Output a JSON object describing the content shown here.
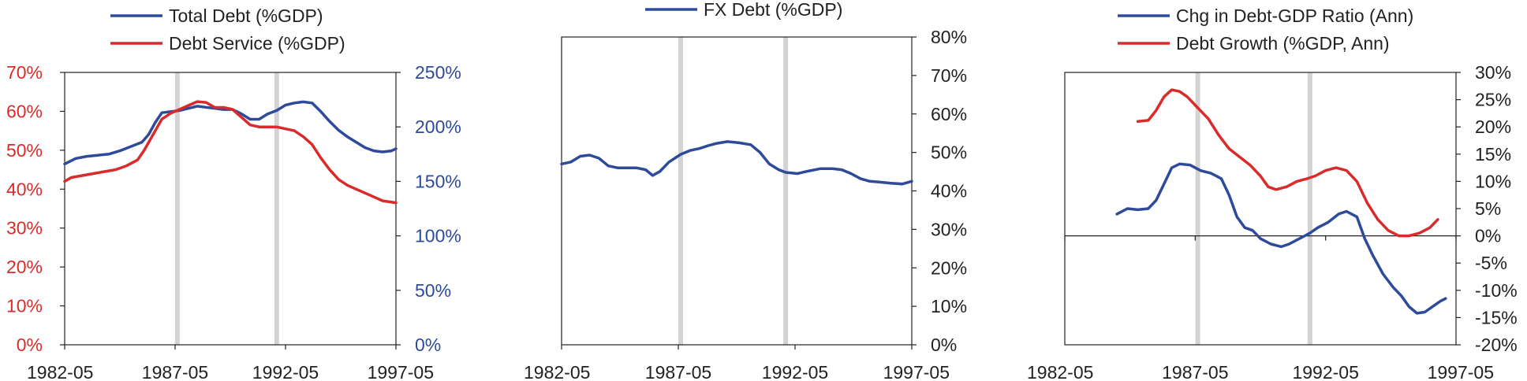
{
  "colors": {
    "blue": "#2e4a9a",
    "red": "#d92b2b",
    "axis": "#222222",
    "band": "#d3d3d3",
    "tick_text": "#222222"
  },
  "chart_data": [
    {
      "id": "c1",
      "type": "line",
      "x_ticks": [
        "1982-05",
        "1987-05",
        "1992-05",
        "1997-05"
      ],
      "x_range": [
        1982.4,
        1997.4
      ],
      "bands": [
        1987.5,
        1992.0
      ],
      "grid": false,
      "legend_position": "top",
      "y_left": {
        "range": [
          0,
          70
        ],
        "ticks": [
          "0%",
          "10%",
          "20%",
          "30%",
          "40%",
          "50%",
          "60%",
          "70%"
        ],
        "color": "red"
      },
      "y_right": {
        "range": [
          0,
          250
        ],
        "ticks": [
          "0%",
          "50%",
          "100%",
          "150%",
          "200%",
          "250%"
        ],
        "color": "blue"
      },
      "series": [
        {
          "name": "Total Debt (%GDP)",
          "color": "blue",
          "axis": "right",
          "points": [
            [
              1982.4,
              166
            ],
            [
              1982.9,
              171
            ],
            [
              1983.4,
              173
            ],
            [
              1983.9,
              174
            ],
            [
              1984.4,
              175
            ],
            [
              1984.9,
              178
            ],
            [
              1985.4,
              182
            ],
            [
              1985.9,
              186
            ],
            [
              1986.2,
              193
            ],
            [
              1986.5,
              204
            ],
            [
              1986.8,
              213
            ],
            [
              1987.2,
              214
            ],
            [
              1987.6,
              215
            ],
            [
              1988.0,
              217
            ],
            [
              1988.4,
              219
            ],
            [
              1988.8,
              218
            ],
            [
              1989.2,
              217
            ],
            [
              1989.6,
              216
            ],
            [
              1990.0,
              216
            ],
            [
              1990.4,
              212
            ],
            [
              1990.8,
              207
            ],
            [
              1991.2,
              207
            ],
            [
              1991.6,
              212
            ],
            [
              1992.0,
              215
            ],
            [
              1992.4,
              220
            ],
            [
              1992.8,
              222
            ],
            [
              1993.2,
              223
            ],
            [
              1993.6,
              222
            ],
            [
              1994.0,
              214
            ],
            [
              1994.4,
              205
            ],
            [
              1994.8,
              197
            ],
            [
              1995.2,
              191
            ],
            [
              1995.6,
              186
            ],
            [
              1996.0,
              181
            ],
            [
              1996.4,
              178
            ],
            [
              1996.8,
              177
            ],
            [
              1997.2,
              178
            ],
            [
              1997.4,
              180
            ]
          ]
        },
        {
          "name": "Debt Service (%GDP)",
          "color": "red",
          "axis": "left",
          "points": [
            [
              1982.4,
              42.0
            ],
            [
              1982.7,
              43.0
            ],
            [
              1983.2,
              43.5
            ],
            [
              1983.7,
              44.0
            ],
            [
              1984.2,
              44.5
            ],
            [
              1984.7,
              45.0
            ],
            [
              1985.2,
              46.0
            ],
            [
              1985.7,
              47.5
            ],
            [
              1986.0,
              50.0
            ],
            [
              1986.4,
              54.0
            ],
            [
              1986.8,
              58.0
            ],
            [
              1987.2,
              59.5
            ],
            [
              1987.6,
              60.5
            ],
            [
              1988.0,
              61.5
            ],
            [
              1988.4,
              62.5
            ],
            [
              1988.8,
              62.3
            ],
            [
              1989.2,
              61.0
            ],
            [
              1989.6,
              61.0
            ],
            [
              1990.0,
              60.5
            ],
            [
              1990.4,
              58.5
            ],
            [
              1990.8,
              56.5
            ],
            [
              1991.2,
              56.0
            ],
            [
              1991.6,
              56.0
            ],
            [
              1992.0,
              56.0
            ],
            [
              1992.4,
              55.5
            ],
            [
              1992.8,
              55.0
            ],
            [
              1993.2,
              53.5
            ],
            [
              1993.6,
              51.5
            ],
            [
              1994.0,
              48.0
            ],
            [
              1994.4,
              45.0
            ],
            [
              1994.8,
              42.5
            ],
            [
              1995.2,
              41.0
            ],
            [
              1995.6,
              40.0
            ],
            [
              1996.0,
              39.0
            ],
            [
              1996.4,
              38.0
            ],
            [
              1996.8,
              37.0
            ],
            [
              1997.4,
              36.5
            ]
          ]
        }
      ]
    },
    {
      "id": "c2",
      "type": "line",
      "x_ticks": [
        "1982-05",
        "1987-05",
        "1992-05",
        "1997-05"
      ],
      "x_range": [
        1982.4,
        1997.4
      ],
      "bands": [
        1987.5,
        1992.0
      ],
      "grid": false,
      "legend_position": "top",
      "y_right": {
        "range": [
          0,
          80
        ],
        "ticks": [
          "0%",
          "10%",
          "20%",
          "30%",
          "40%",
          "50%",
          "60%",
          "70%",
          "80%"
        ],
        "color": "axis"
      },
      "series": [
        {
          "name": "FX Debt (%GDP)",
          "color": "blue",
          "axis": "right",
          "points": [
            [
              1982.4,
              47.0
            ],
            [
              1982.8,
              47.5
            ],
            [
              1983.2,
              49.0
            ],
            [
              1983.6,
              49.3
            ],
            [
              1984.0,
              48.5
            ],
            [
              1984.4,
              46.5
            ],
            [
              1984.8,
              46.0
            ],
            [
              1985.2,
              46.0
            ],
            [
              1985.6,
              46.0
            ],
            [
              1986.0,
              45.5
            ],
            [
              1986.3,
              44.0
            ],
            [
              1986.6,
              45.0
            ],
            [
              1987.0,
              47.5
            ],
            [
              1987.5,
              49.5
            ],
            [
              1987.9,
              50.5
            ],
            [
              1988.3,
              51.0
            ],
            [
              1988.7,
              51.8
            ],
            [
              1989.0,
              52.3
            ],
            [
              1989.5,
              52.8
            ],
            [
              1990.0,
              52.5
            ],
            [
              1990.5,
              52.0
            ],
            [
              1990.9,
              50.0
            ],
            [
              1991.3,
              47.0
            ],
            [
              1991.7,
              45.5
            ],
            [
              1992.0,
              44.8
            ],
            [
              1992.5,
              44.5
            ],
            [
              1993.0,
              45.2
            ],
            [
              1993.5,
              45.8
            ],
            [
              1994.0,
              45.8
            ],
            [
              1994.4,
              45.5
            ],
            [
              1994.8,
              44.5
            ],
            [
              1995.2,
              43.2
            ],
            [
              1995.6,
              42.5
            ],
            [
              1996.0,
              42.3
            ],
            [
              1996.5,
              42.0
            ],
            [
              1997.0,
              41.8
            ],
            [
              1997.4,
              42.5
            ]
          ]
        }
      ]
    },
    {
      "id": "c3",
      "type": "line",
      "x_ticks": [
        "1982-05",
        "1987-05",
        "1992-05",
        "1997-05"
      ],
      "x_range": [
        1982.4,
        1997.4
      ],
      "bands": [
        1987.5,
        1991.8
      ],
      "grid": false,
      "legend_position": "top",
      "zero_line": true,
      "y_right": {
        "range": [
          -20,
          30
        ],
        "ticks": [
          "-20%",
          "-15%",
          "-10%",
          "-5%",
          "0%",
          "5%",
          "10%",
          "15%",
          "20%",
          "25%",
          "30%"
        ],
        "color": "axis"
      },
      "series": [
        {
          "name": "Chg in Debt-GDP Ratio (Ann)",
          "color": "blue",
          "axis": "right",
          "points": [
            [
              1984.4,
              4.0
            ],
            [
              1984.8,
              5.0
            ],
            [
              1985.2,
              4.8
            ],
            [
              1985.6,
              5.0
            ],
            [
              1985.9,
              6.5
            ],
            [
              1986.2,
              9.5
            ],
            [
              1986.5,
              12.5
            ],
            [
              1986.8,
              13.2
            ],
            [
              1987.2,
              13.0
            ],
            [
              1987.6,
              12.0
            ],
            [
              1988.0,
              11.5
            ],
            [
              1988.4,
              10.5
            ],
            [
              1988.7,
              7.5
            ],
            [
              1989.0,
              3.5
            ],
            [
              1989.3,
              1.5
            ],
            [
              1989.6,
              1.0
            ],
            [
              1989.9,
              -0.5
            ],
            [
              1990.3,
              -1.5
            ],
            [
              1990.7,
              -2.0
            ],
            [
              1991.0,
              -1.5
            ],
            [
              1991.4,
              -0.5
            ],
            [
              1991.8,
              0.5
            ],
            [
              1992.1,
              1.5
            ],
            [
              1992.5,
              2.5
            ],
            [
              1992.9,
              4.0
            ],
            [
              1993.2,
              4.5
            ],
            [
              1993.6,
              3.5
            ],
            [
              1993.9,
              -0.5
            ],
            [
              1994.2,
              -3.5
            ],
            [
              1994.6,
              -7.0
            ],
            [
              1995.0,
              -9.5
            ],
            [
              1995.3,
              -11.0
            ],
            [
              1995.6,
              -13.0
            ],
            [
              1995.9,
              -14.2
            ],
            [
              1996.2,
              -14.0
            ],
            [
              1996.5,
              -13.0
            ],
            [
              1996.8,
              -12.0
            ],
            [
              1997.0,
              -11.5
            ]
          ]
        },
        {
          "name": "Debt Growth (%GDP, Ann)",
          "color": "red",
          "axis": "right",
          "points": [
            [
              1985.2,
              21.0
            ],
            [
              1985.6,
              21.2
            ],
            [
              1985.9,
              23.0
            ],
            [
              1986.2,
              25.5
            ],
            [
              1986.5,
              26.8
            ],
            [
              1986.8,
              26.5
            ],
            [
              1987.1,
              25.5
            ],
            [
              1987.5,
              23.5
            ],
            [
              1987.9,
              21.5
            ],
            [
              1988.3,
              18.5
            ],
            [
              1988.7,
              16.0
            ],
            [
              1989.1,
              14.5
            ],
            [
              1989.5,
              13.0
            ],
            [
              1989.9,
              11.0
            ],
            [
              1990.2,
              9.0
            ],
            [
              1990.5,
              8.5
            ],
            [
              1990.9,
              9.0
            ],
            [
              1991.3,
              10.0
            ],
            [
              1991.7,
              10.5
            ],
            [
              1992.0,
              11.0
            ],
            [
              1992.4,
              12.0
            ],
            [
              1992.8,
              12.5
            ],
            [
              1993.2,
              12.0
            ],
            [
              1993.6,
              10.0
            ],
            [
              1994.0,
              6.0
            ],
            [
              1994.4,
              3.0
            ],
            [
              1994.8,
              1.0
            ],
            [
              1995.2,
              0.0
            ],
            [
              1995.6,
              0.0
            ],
            [
              1996.0,
              0.5
            ],
            [
              1996.4,
              1.5
            ],
            [
              1996.7,
              3.0
            ]
          ]
        }
      ]
    }
  ]
}
